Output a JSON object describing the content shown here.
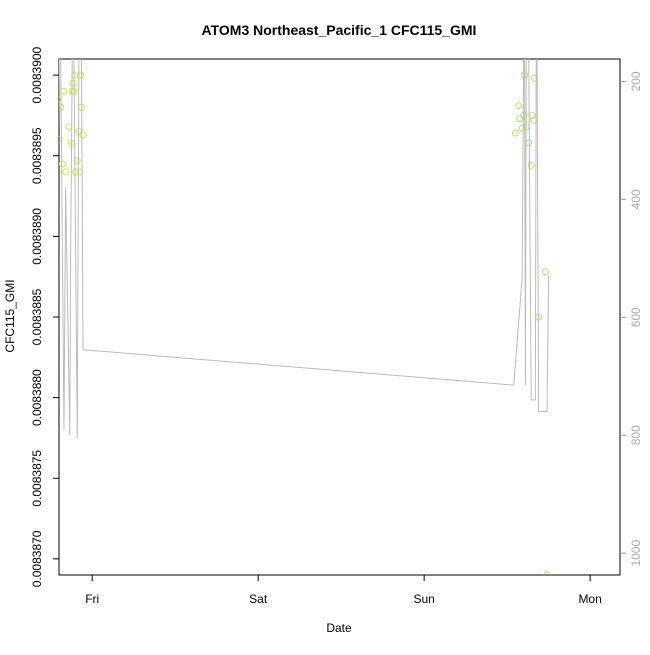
{
  "chart_data": {
    "type": "scatter",
    "title": "ATOM3 Northeast_Pacific_1 CFC115_GMI",
    "xlabel": "Date",
    "ylabel": "CFC115_GMI",
    "xlim": [
      0.0,
      3.38
    ],
    "ylim": [
      0.0083869,
      0.0083901
    ],
    "x_ticks": [
      {
        "value": 0.2,
        "label": "Fri"
      },
      {
        "value": 1.2,
        "label": "Sat"
      },
      {
        "value": 2.2,
        "label": "Sun"
      },
      {
        "value": 3.2,
        "label": "Mon"
      }
    ],
    "y_ticks": [
      {
        "value": 0.008387,
        "label": "0.0083870"
      },
      {
        "value": 0.0083875,
        "label": "0.0083875"
      },
      {
        "value": 0.008388,
        "label": "0.0083880"
      },
      {
        "value": 0.0083885,
        "label": "0.0083885"
      },
      {
        "value": 0.008389,
        "label": "0.0083890"
      },
      {
        "value": 0.0083895,
        "label": "0.0083895"
      },
      {
        "value": 0.00839,
        "label": "0.0083900"
      }
    ],
    "y2lim": [
      1037,
      162
    ],
    "y2_ticks": [
      {
        "value": 200,
        "label": "200"
      },
      {
        "value": 400,
        "label": "400"
      },
      {
        "value": 600,
        "label": "600"
      },
      {
        "value": 800,
        "label": "800"
      },
      {
        "value": 1000,
        "label": "1000"
      }
    ],
    "grid": false,
    "series": [
      {
        "kind": "points",
        "color": "#ccee33",
        "points": [
          [
            -0.13,
            0.0083896
          ],
          [
            -0.06,
            0.00838978
          ],
          [
            -0.02,
            0.0083897
          ],
          [
            -0.015,
            0.00838999
          ],
          [
            -0.01,
            0.00838985
          ],
          [
            0.0,
            0.0083896
          ],
          [
            0.01,
            0.0083898
          ],
          [
            0.02,
            0.00838945
          ],
          [
            0.03,
            0.0083899
          ],
          [
            0.04,
            0.0083894
          ],
          [
            0.06,
            0.00838968
          ],
          [
            0.075,
            0.00838958
          ],
          [
            0.08,
            0.0083899
          ],
          [
            0.085,
            0.00838995
          ],
          [
            0.09,
            0.0083899
          ],
          [
            0.095,
            0.00839
          ],
          [
            0.1,
            0.0083894
          ],
          [
            0.11,
            0.00838947
          ],
          [
            0.12,
            0.00838965
          ],
          [
            0.125,
            0.0083894
          ],
          [
            0.13,
            0.00839
          ],
          [
            0.135,
            0.0083898
          ],
          [
            0.145,
            0.00838963
          ]
        ]
      },
      {
        "kind": "points",
        "color": "#aaee55",
        "points": [
          [
            2.75,
            0.00838964
          ],
          [
            2.77,
            0.00838981
          ],
          [
            2.775,
            0.00838973
          ],
          [
            2.79,
            0.00838967
          ],
          [
            2.8,
            0.00838975
          ],
          [
            2.805,
            0.00839
          ],
          [
            2.815,
            0.00838968
          ],
          [
            2.83,
            0.00838958
          ],
          [
            2.845,
            0.00838944
          ],
          [
            2.85,
            0.00838975
          ],
          [
            2.86,
            0.00838972
          ],
          [
            2.865,
            0.00838998
          ],
          [
            2.89,
            0.0083885
          ],
          [
            2.93,
            0.00838878
          ],
          [
            2.94,
            0.0083869
          ]
        ]
      },
      {
        "kind": "line",
        "axis": "right",
        "color": "#bbbbbb",
        "points": [
          [
            -0.1,
            735
          ],
          [
            -0.06,
            750
          ],
          [
            -0.01,
            585
          ],
          [
            0.0,
            155
          ],
          [
            0.01,
            155
          ],
          [
            0.03,
            790
          ],
          [
            0.04,
            380
          ],
          [
            0.065,
            800
          ],
          [
            0.07,
            500
          ],
          [
            0.08,
            155
          ],
          [
            0.09,
            155
          ],
          [
            0.11,
            805
          ],
          [
            0.12,
            155
          ],
          [
            0.135,
            155
          ],
          [
            0.145,
            655
          ],
          [
            2.74,
            715
          ],
          [
            2.79,
            535
          ],
          [
            2.8,
            155
          ],
          [
            2.805,
            155
          ],
          [
            2.81,
            715
          ],
          [
            2.815,
            155
          ],
          [
            2.83,
            155
          ],
          [
            2.845,
            740
          ],
          [
            2.87,
            740
          ],
          [
            2.875,
            155
          ],
          [
            2.88,
            155
          ],
          [
            2.89,
            760
          ],
          [
            2.94,
            760
          ],
          [
            2.95,
            530
          ]
        ]
      }
    ]
  }
}
